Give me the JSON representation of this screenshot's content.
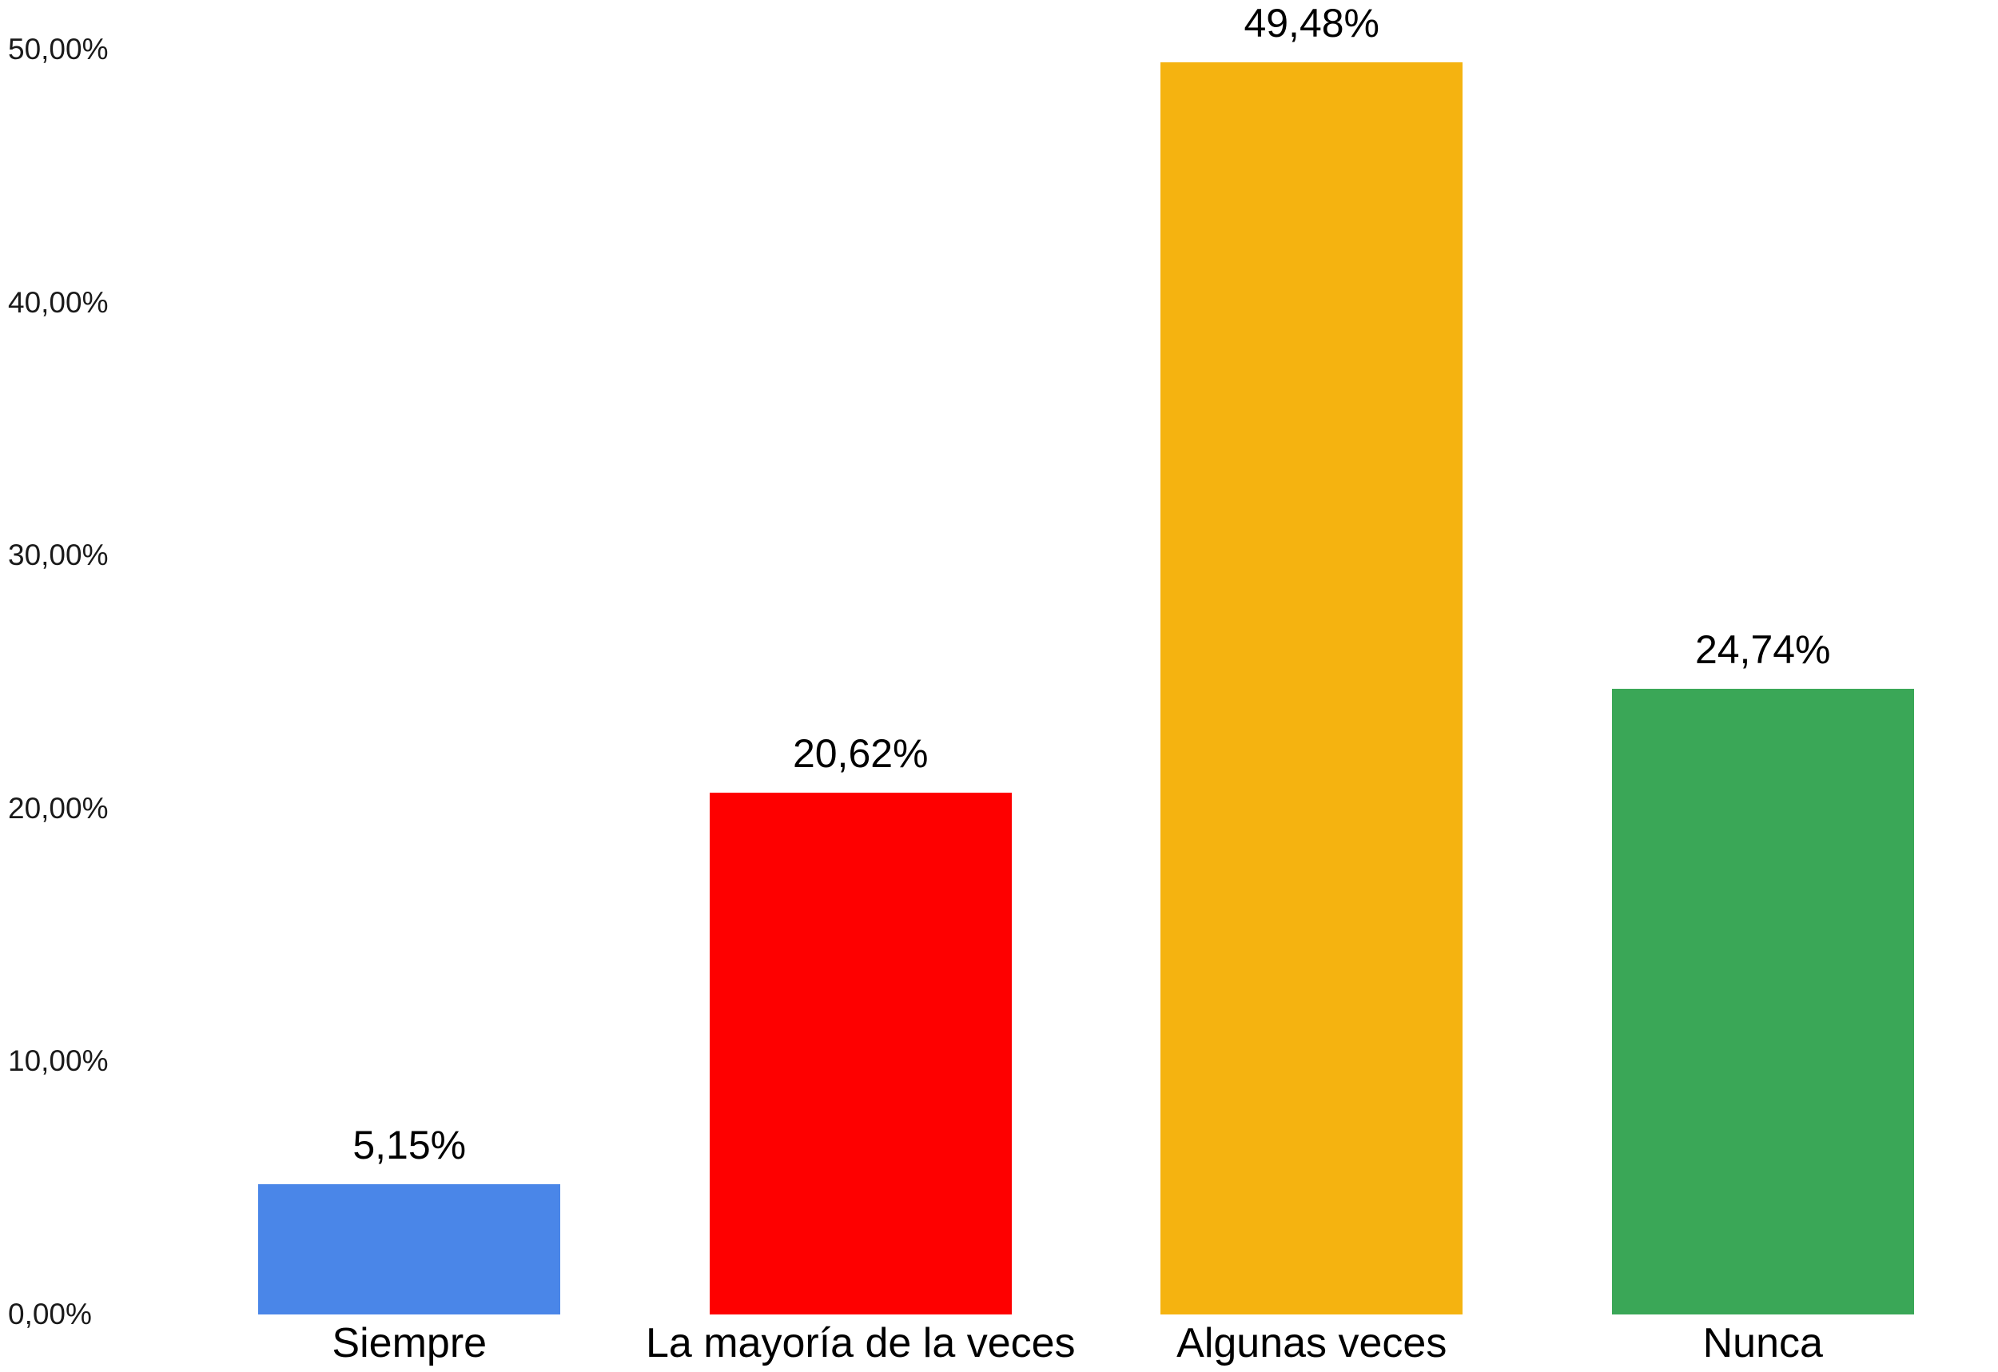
{
  "chart_data": {
    "type": "bar",
    "title": "",
    "xlabel": "",
    "ylabel": "",
    "categories": [
      "Siempre",
      "La mayoría de la veces",
      "Algunas veces",
      "Nunca"
    ],
    "values": [
      5.15,
      20.62,
      49.48,
      24.74
    ],
    "value_labels": [
      "5,15%",
      "20,62%",
      "49,48%",
      "24,74%"
    ],
    "bar_colors": [
      "#4a86e8",
      "#fe0000",
      "#f5b310",
      "#3aa757"
    ],
    "ylim": [
      0,
      50
    ],
    "y_tick_values": [
      0,
      10,
      20,
      30,
      40,
      50
    ],
    "y_tick_labels": [
      "0,00%",
      "10,00%",
      "20,00%",
      "30,00%",
      "40,00%",
      "50,00%"
    ],
    "grid": false,
    "legend_position": "none",
    "background_color": "#ffffff",
    "text_color": "#000000"
  }
}
